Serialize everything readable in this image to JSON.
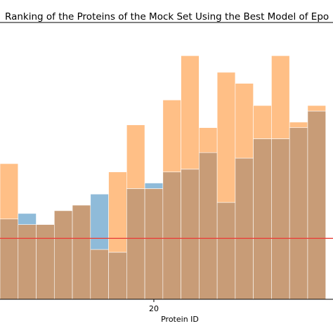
{
  "chart_data": {
    "type": "bar",
    "title": "Ranking of the Proteins of the Mock Set Using the Best Model of Epo",
    "xlabel": "Protein ID",
    "ylabel": "",
    "x_ticks": [
      20
    ],
    "x_range": [
      11.5,
      29.9
    ],
    "y_range": [
      0,
      100
    ],
    "grid": false,
    "legend": "none",
    "x": [
      12,
      13,
      14,
      15,
      16,
      17,
      18,
      19,
      20,
      21,
      22,
      23,
      24,
      25,
      26,
      27,
      28,
      29
    ],
    "series": [
      {
        "color": "#1f77b4",
        "values": [
          29,
          31,
          27,
          32,
          34,
          38,
          17,
          40,
          42,
          46,
          47,
          53,
          35,
          51,
          58,
          58,
          62,
          68
        ]
      },
      {
        "color": "#ff7f0e",
        "values": [
          49,
          27,
          27,
          32,
          34,
          18,
          46,
          63,
          40,
          72,
          88,
          62,
          82,
          78,
          70,
          88,
          64,
          70
        ]
      }
    ],
    "reference_line": {
      "y": 22,
      "color": "#e8413a"
    },
    "colors": {
      "series_a": "#1f77b4",
      "series_b": "#ff7f0e",
      "overlap": "#c89c77",
      "reference": "#e8413a"
    }
  }
}
